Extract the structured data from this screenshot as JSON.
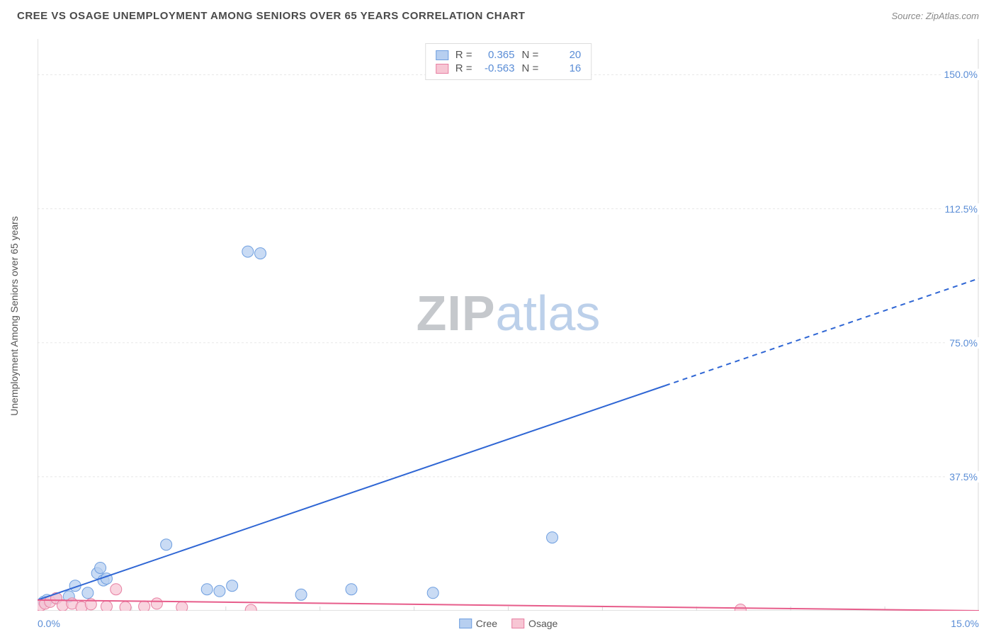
{
  "header": {
    "title": "CREE VS OSAGE UNEMPLOYMENT AMONG SENIORS OVER 65 YEARS CORRELATION CHART",
    "source": "Source: ZipAtlas.com"
  },
  "axes": {
    "y_label": "Unemployment Among Seniors over 65 years",
    "y_min": 0,
    "y_max": 160,
    "y_ticks": [
      37.5,
      75.0,
      112.5,
      150.0
    ],
    "y_tick_labels": [
      "37.5%",
      "75.0%",
      "112.5%",
      "150.0%"
    ],
    "x_min": 0,
    "x_max": 15,
    "x_tick_labels": {
      "left": "0.0%",
      "right": "15.0%"
    }
  },
  "watermark": {
    "left": "ZIP",
    "right": "atlas"
  },
  "chart": {
    "type": "scatter",
    "background_color": "#ffffff",
    "grid_color": "#e8e8e8",
    "border_color": "#d8d8d8",
    "text_color": "#555555",
    "tick_label_color": "#5a8dd6",
    "tick_mark_positions_x": [
      1.5,
      3.0,
      4.5,
      6.0,
      7.5,
      9.0,
      10.5,
      12.0,
      13.5
    ],
    "series": [
      {
        "name": "Cree",
        "fill": "#b7cff0",
        "stroke": "#6f9fe0",
        "line_color": "#2f66d4",
        "marker_r": 8,
        "R": "0.365",
        "N": "20",
        "trend": {
          "x1": 0,
          "y1": 3,
          "x2": 15,
          "y2": 93,
          "solid_until_x": 10.0
        },
        "points": [
          [
            0.1,
            2.5
          ],
          [
            0.15,
            3.0
          ],
          [
            0.3,
            3.5
          ],
          [
            0.5,
            4.0
          ],
          [
            0.6,
            7.0
          ],
          [
            0.8,
            5.0
          ],
          [
            0.95,
            10.5
          ],
          [
            1.0,
            12.0
          ],
          [
            1.05,
            8.5
          ],
          [
            1.1,
            9.0
          ],
          [
            2.05,
            18.5
          ],
          [
            2.7,
            6.0
          ],
          [
            2.9,
            5.5
          ],
          [
            3.1,
            7.0
          ],
          [
            3.35,
            100.5
          ],
          [
            3.55,
            100.0
          ],
          [
            4.2,
            4.5
          ],
          [
            5.0,
            6.0
          ],
          [
            6.3,
            5.0
          ],
          [
            8.2,
            20.5
          ]
        ]
      },
      {
        "name": "Osage",
        "fill": "#f7c6d4",
        "stroke": "#e77fa2",
        "line_color": "#e75d8b",
        "marker_r": 8,
        "R": "-0.563",
        "N": "16",
        "trend": {
          "x1": 0,
          "y1": 3.0,
          "x2": 15,
          "y2": 0.0,
          "solid_until_x": 15
        },
        "points": [
          [
            0.05,
            1.5
          ],
          [
            0.12,
            2.0
          ],
          [
            0.2,
            2.5
          ],
          [
            0.3,
            3.5
          ],
          [
            0.4,
            1.5
          ],
          [
            0.55,
            2.0
          ],
          [
            0.7,
            1.0
          ],
          [
            0.85,
            1.8
          ],
          [
            1.1,
            1.2
          ],
          [
            1.25,
            6.0
          ],
          [
            1.4,
            1.0
          ],
          [
            1.7,
            1.2
          ],
          [
            1.9,
            2.0
          ],
          [
            2.3,
            1.0
          ],
          [
            3.4,
            0.2
          ],
          [
            11.2,
            0.3
          ]
        ]
      }
    ],
    "bottom_legend": [
      "Cree",
      "Osage"
    ]
  }
}
